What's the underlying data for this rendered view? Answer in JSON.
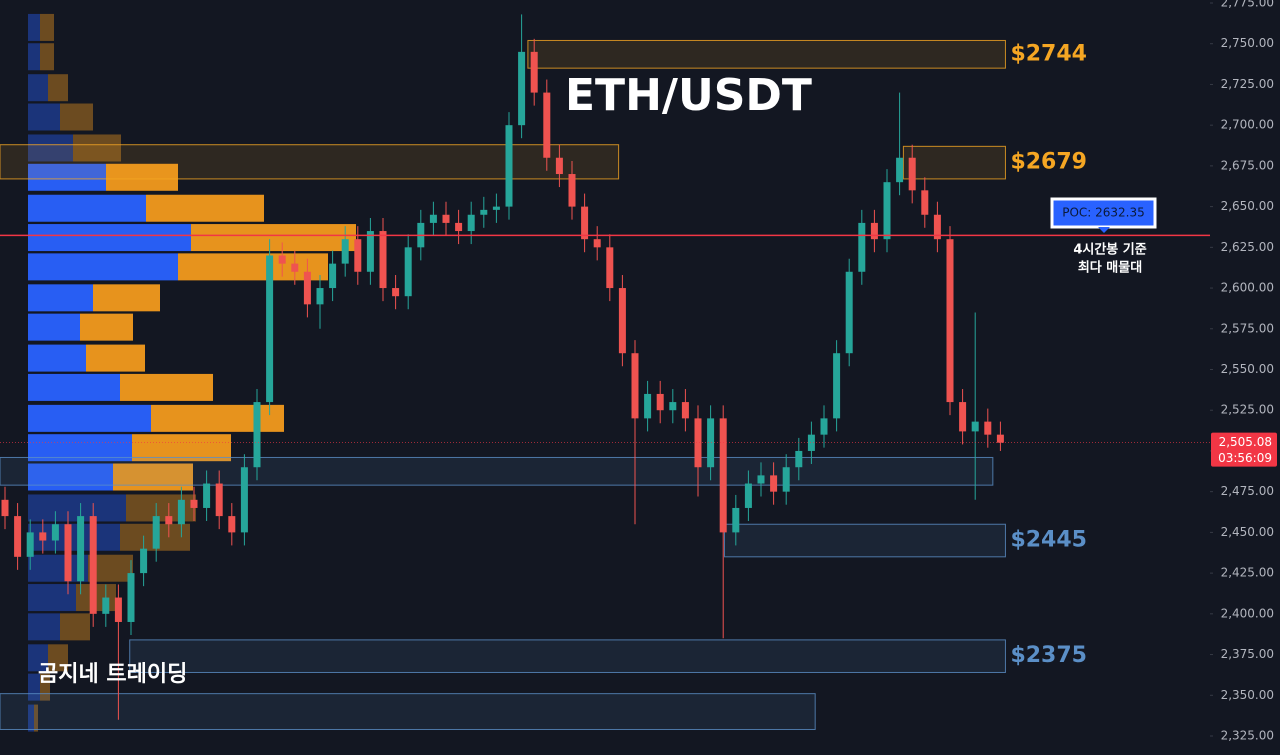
{
  "chart_data": {
    "type": "candlestick",
    "title": "ETH/USDT",
    "watermark": "곰지네 트레이딩",
    "ylim": [
      2325,
      2775
    ],
    "yticks": [
      {
        "value": 2325,
        "label": "2,325.00"
      },
      {
        "value": 2350,
        "label": "2,350.00"
      },
      {
        "value": 2375,
        "label": "2,375.00"
      },
      {
        "value": 2400,
        "label": "2,400.00"
      },
      {
        "value": 2425,
        "label": "2,425.00"
      },
      {
        "value": 2450,
        "label": "2,450.00"
      },
      {
        "value": 2475,
        "label": "2,475.00"
      },
      {
        "value": 2500,
        "label": "2,500.00"
      },
      {
        "value": 2525,
        "label": "2,525.00"
      },
      {
        "value": 2550,
        "label": "2,550.00"
      },
      {
        "value": 2575,
        "label": "2,575.00"
      },
      {
        "value": 2600,
        "label": "2,600.00"
      },
      {
        "value": 2625,
        "label": "2,625.00"
      },
      {
        "value": 2650,
        "label": "2,650.00"
      },
      {
        "value": 2675,
        "label": "2,675.00"
      },
      {
        "value": 2700,
        "label": "2,700.00"
      },
      {
        "value": 2725,
        "label": "2,725.00"
      },
      {
        "value": 2750,
        "label": "2,750.00"
      },
      {
        "value": 2775,
        "label": "2,775.00"
      }
    ],
    "up_color": "#26a69a",
    "down_color": "#ef5350",
    "open": [
      2470,
      2460,
      2435,
      2450,
      2445,
      2455,
      2420,
      2460,
      2400,
      2410,
      2395,
      2425,
      2440,
      2460,
      2455,
      2470,
      2465,
      2480,
      2460,
      2450,
      2490,
      2530,
      2620,
      2615,
      2610,
      2590,
      2600,
      2615,
      2630,
      2610,
      2635,
      2600,
      2595,
      2625,
      2640,
      2645,
      2640,
      2635,
      2645,
      2648,
      2650,
      2700,
      2745,
      2720,
      2680,
      2670,
      2650,
      2630,
      2625,
      2600,
      2560,
      2520,
      2535,
      2525,
      2530,
      2520,
      2490,
      2520,
      2450,
      2465,
      2480,
      2485,
      2475,
      2490,
      2500,
      2510,
      2520,
      2560,
      2610,
      2640,
      2630,
      2665,
      2680,
      2660,
      2645,
      2630,
      2530,
      2512,
      2518,
      2510
    ],
    "high": [
      2478,
      2468,
      2458,
      2458,
      2463,
      2463,
      2468,
      2468,
      2418,
      2418,
      2433,
      2448,
      2468,
      2468,
      2478,
      2478,
      2488,
      2488,
      2468,
      2498,
      2538,
      2630,
      2628,
      2623,
      2618,
      2608,
      2623,
      2638,
      2638,
      2643,
      2643,
      2608,
      2633,
      2648,
      2653,
      2653,
      2648,
      2653,
      2656,
      2658,
      2708,
      2768,
      2753,
      2728,
      2688,
      2678,
      2658,
      2638,
      2633,
      2608,
      2568,
      2543,
      2543,
      2538,
      2538,
      2528,
      2528,
      2528,
      2473,
      2488,
      2493,
      2493,
      2498,
      2508,
      2518,
      2528,
      2568,
      2618,
      2648,
      2648,
      2673,
      2720,
      2688,
      2668,
      2653,
      2638,
      2538,
      2585,
      2526,
      2518
    ],
    "low": [
      2452,
      2427,
      2427,
      2437,
      2437,
      2412,
      2412,
      2392,
      2392,
      2335,
      2387,
      2417,
      2432,
      2447,
      2447,
      2457,
      2457,
      2452,
      2442,
      2442,
      2482,
      2522,
      2607,
      2602,
      2582,
      2575,
      2592,
      2607,
      2602,
      2602,
      2592,
      2587,
      2587,
      2617,
      2632,
      2632,
      2627,
      2627,
      2637,
      2640,
      2642,
      2692,
      2712,
      2672,
      2662,
      2642,
      2622,
      2617,
      2592,
      2552,
      2455,
      2512,
      2517,
      2517,
      2512,
      2472,
      2482,
      2385,
      2442,
      2457,
      2472,
      2467,
      2467,
      2482,
      2492,
      2502,
      2512,
      2552,
      2602,
      2622,
      2622,
      2657,
      2652,
      2637,
      2622,
      2522,
      2504,
      2470,
      2502,
      2500
    ],
    "close": [
      2460,
      2435,
      2450,
      2445,
      2455,
      2420,
      2460,
      2400,
      2410,
      2395,
      2425,
      2440,
      2460,
      2455,
      2470,
      2465,
      2480,
      2460,
      2450,
      2490,
      2530,
      2620,
      2615,
      2610,
      2590,
      2600,
      2615,
      2630,
      2610,
      2635,
      2600,
      2595,
      2625,
      2640,
      2645,
      2640,
      2635,
      2645,
      2648,
      2650,
      2700,
      2745,
      2720,
      2680,
      2670,
      2650,
      2630,
      2625,
      2600,
      2560,
      2520,
      2535,
      2525,
      2530,
      2520,
      2490,
      2520,
      2450,
      2465,
      2480,
      2485,
      2475,
      2490,
      2500,
      2510,
      2520,
      2560,
      2610,
      2640,
      2630,
      2665,
      2680,
      2660,
      2645,
      2630,
      2530,
      2512,
      2518,
      2510,
      2505.08
    ],
    "last_price": {
      "value": 2505.08,
      "label": "2,505.08",
      "countdown": "03:56:09"
    },
    "profile": {
      "buy_color": "#2962ff",
      "sell_color": "#f29a1d",
      "value_area": [
        2484,
        2668
      ],
      "levels": [
        2760,
        2742,
        2723,
        2705,
        2686,
        2668,
        2649,
        2631,
        2613,
        2594,
        2576,
        2557,
        2539,
        2520,
        2502,
        2484,
        2465,
        2447,
        2428,
        2410,
        2392,
        2373,
        2355,
        2336
      ],
      "buy": [
        12,
        12,
        20,
        32,
        45,
        78,
        118,
        163,
        150,
        65,
        52,
        58,
        92,
        123,
        104,
        85,
        98,
        92,
        60,
        48,
        32,
        20,
        12,
        6
      ],
      "sell": [
        14,
        14,
        20,
        33,
        48,
        72,
        118,
        165,
        150,
        67,
        53,
        59,
        93,
        133,
        99,
        80,
        70,
        70,
        45,
        40,
        30,
        20,
        10,
        4
      ]
    },
    "poc": {
      "value": 2632.35,
      "label": "POC: 2632.35",
      "color": "#f23645",
      "annotation": [
        "4시간봉 기준",
        "최다 매물대"
      ]
    },
    "zones": [
      {
        "top": 2752,
        "bottom": 2735,
        "start": 41.5,
        "end": 79.4,
        "color": "#f5a623",
        "label": "$2744"
      },
      {
        "top": 2688,
        "bottom": 2667,
        "start": -0.4,
        "end": 48.7,
        "color": "#f5a623"
      },
      {
        "top": 2687,
        "bottom": 2667,
        "start": 71.3,
        "end": 79.4,
        "color": "#f5a623",
        "label": "$2679"
      },
      {
        "top": 2496,
        "bottom": 2479,
        "start": -0.4,
        "end": 78.4,
        "color": "#5b8fc7"
      },
      {
        "top": 2455,
        "bottom": 2435,
        "start": 57.1,
        "end": 79.4,
        "color": "#5b8fc7",
        "label": "$2445"
      },
      {
        "top": 2384,
        "bottom": 2364,
        "start": 9.9,
        "end": 79.4,
        "color": "#5b8fc7",
        "label": "$2375"
      },
      {
        "top": 2351,
        "bottom": 2329,
        "start": -0.4,
        "end": 64.3,
        "color": "#5b8fc7"
      }
    ]
  }
}
